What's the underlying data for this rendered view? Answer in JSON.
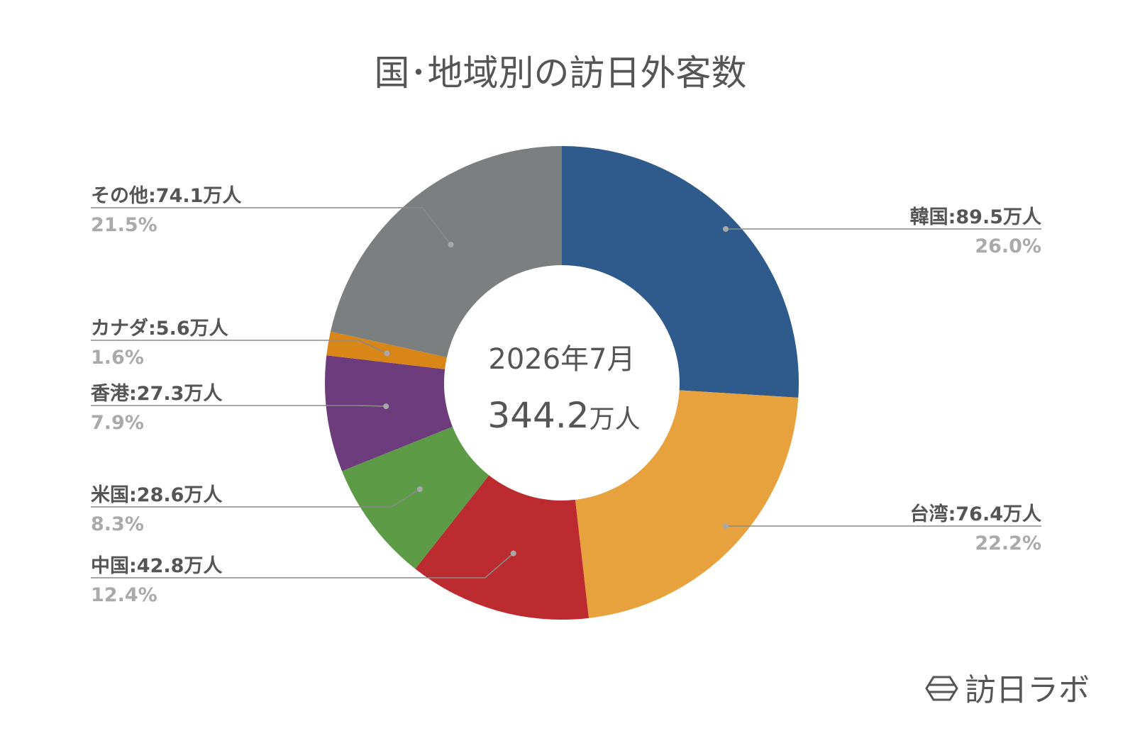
{
  "chart_data": {
    "type": "pie",
    "donut": true,
    "title": "国･地域別の訪日外客数",
    "center": {
      "date_label": "2026年7月",
      "total_value": "344.2",
      "total_unit": "万人"
    },
    "slices": [
      {
        "name": "韓国",
        "value": 89.5,
        "value_label": "89.5万人",
        "percent_label": "26.0%",
        "color": "#2e5a8c",
        "label_side": "right"
      },
      {
        "name": "台湾",
        "value": 76.4,
        "value_label": "76.4万人",
        "percent_label": "22.2%",
        "color": "#e8a23d",
        "label_side": "right"
      },
      {
        "name": "中国",
        "value": 42.8,
        "value_label": "42.8万人",
        "percent_label": "12.4%",
        "color": "#bb2b2f",
        "label_side": "left"
      },
      {
        "name": "米国",
        "value": 28.6,
        "value_label": "28.6万人",
        "percent_label": "8.3%",
        "color": "#5e9b47",
        "label_side": "left"
      },
      {
        "name": "香港",
        "value": 27.3,
        "value_label": "27.3万人",
        "percent_label": "7.9%",
        "color": "#6c3c7c",
        "label_side": "left"
      },
      {
        "name": "カナダ",
        "value": 5.6,
        "value_label": "5.6万人",
        "percent_label": "1.6%",
        "color": "#d88617",
        "label_side": "left"
      },
      {
        "name": "その他",
        "value": 74.1,
        "value_label": "74.1万人",
        "percent_label": "21.5%",
        "color": "#7c7f80",
        "label_side": "left"
      }
    ],
    "legend": "none"
  },
  "brand": {
    "name": "訪日ラボ",
    "icon": "hexagon-logo-icon"
  }
}
